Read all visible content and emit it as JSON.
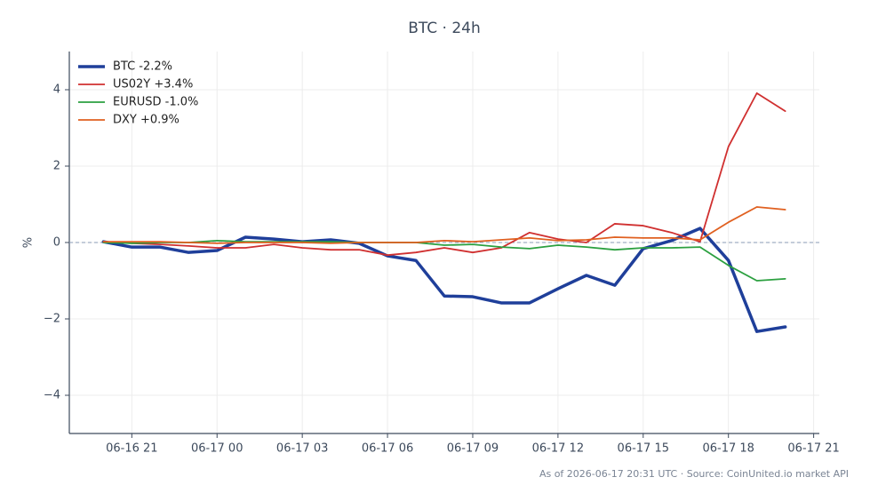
{
  "chart_data": {
    "type": "line",
    "title": "BTC · 24h",
    "y_label": "%",
    "footnote": "As of 2026-06-17 20:31 UTC · Source: CoinUnited.io market API",
    "x": [
      "06-16 20",
      "06-16 21",
      "06-16 22",
      "06-16 23",
      "06-17 00",
      "06-17 01",
      "06-17 02",
      "06-17 03",
      "06-17 04",
      "06-17 05",
      "06-17 06",
      "06-17 07",
      "06-17 08",
      "06-17 09",
      "06-17 10",
      "06-17 11",
      "06-17 12",
      "06-17 13",
      "06-17 14",
      "06-17 15",
      "06-17 16",
      "06-17 17",
      "06-17 18",
      "06-17 19",
      "06-17 20"
    ],
    "xlim": [
      "06-16 18:48",
      "06-17 21:12"
    ],
    "xticks": [
      "06-16 21",
      "06-17 00",
      "06-17 03",
      "06-17 06",
      "06-17 09",
      "06-17 12",
      "06-17 15",
      "06-17 18",
      "06-17 21"
    ],
    "ylim": [
      -5,
      5
    ],
    "yticks": [
      {
        "value": -4,
        "label": "−4"
      },
      {
        "value": -2,
        "label": "−2"
      },
      0,
      2,
      4
    ],
    "grid": true,
    "zero_line": true,
    "legend": "upper left",
    "series": [
      {
        "name": "BTC -2.2%",
        "color": "#1f3f9a",
        "line_width": 3.5,
        "values": [
          0.02,
          -0.12,
          -0.12,
          -0.26,
          -0.21,
          0.14,
          0.09,
          0.02,
          0.07,
          -0.02,
          -0.35,
          -0.47,
          -1.4,
          -1.42,
          -1.58,
          -1.58,
          -1.21,
          -0.86,
          -1.12,
          -0.16,
          0.05,
          0.37,
          -0.47,
          -2.33,
          -2.21
        ]
      },
      {
        "name": "US02Y +3.4%",
        "color": "#d03030",
        "line_width": 1.8,
        "values": [
          0.02,
          -0.02,
          -0.05,
          -0.09,
          -0.14,
          -0.14,
          -0.05,
          -0.14,
          -0.19,
          -0.19,
          -0.33,
          -0.26,
          -0.14,
          -0.26,
          -0.14,
          0.26,
          0.09,
          0,
          0.49,
          0.44,
          0.26,
          0.02,
          2.51,
          3.91,
          3.44
        ]
      },
      {
        "name": "EURUSD -1.0%",
        "color": "#2ca040",
        "line_width": 1.8,
        "values": [
          0,
          -0.02,
          0,
          0,
          0.05,
          0.02,
          0.02,
          0.02,
          0.02,
          0,
          0,
          0,
          -0.07,
          -0.05,
          -0.12,
          -0.16,
          -0.07,
          -0.12,
          -0.19,
          -0.14,
          -0.14,
          -0.12,
          -0.6,
          -1.0,
          -0.95
        ]
      },
      {
        "name": "DXY +0.9%",
        "color": "#e06020",
        "line_width": 1.8,
        "values": [
          0.02,
          0.02,
          0.02,
          0,
          -0.02,
          0,
          0,
          0,
          -0.02,
          0,
          0,
          0,
          0.05,
          0.02,
          0.07,
          0.12,
          0.05,
          0.07,
          0.14,
          0.12,
          0.12,
          0.07,
          0.53,
          0.93,
          0.86
        ]
      }
    ]
  }
}
